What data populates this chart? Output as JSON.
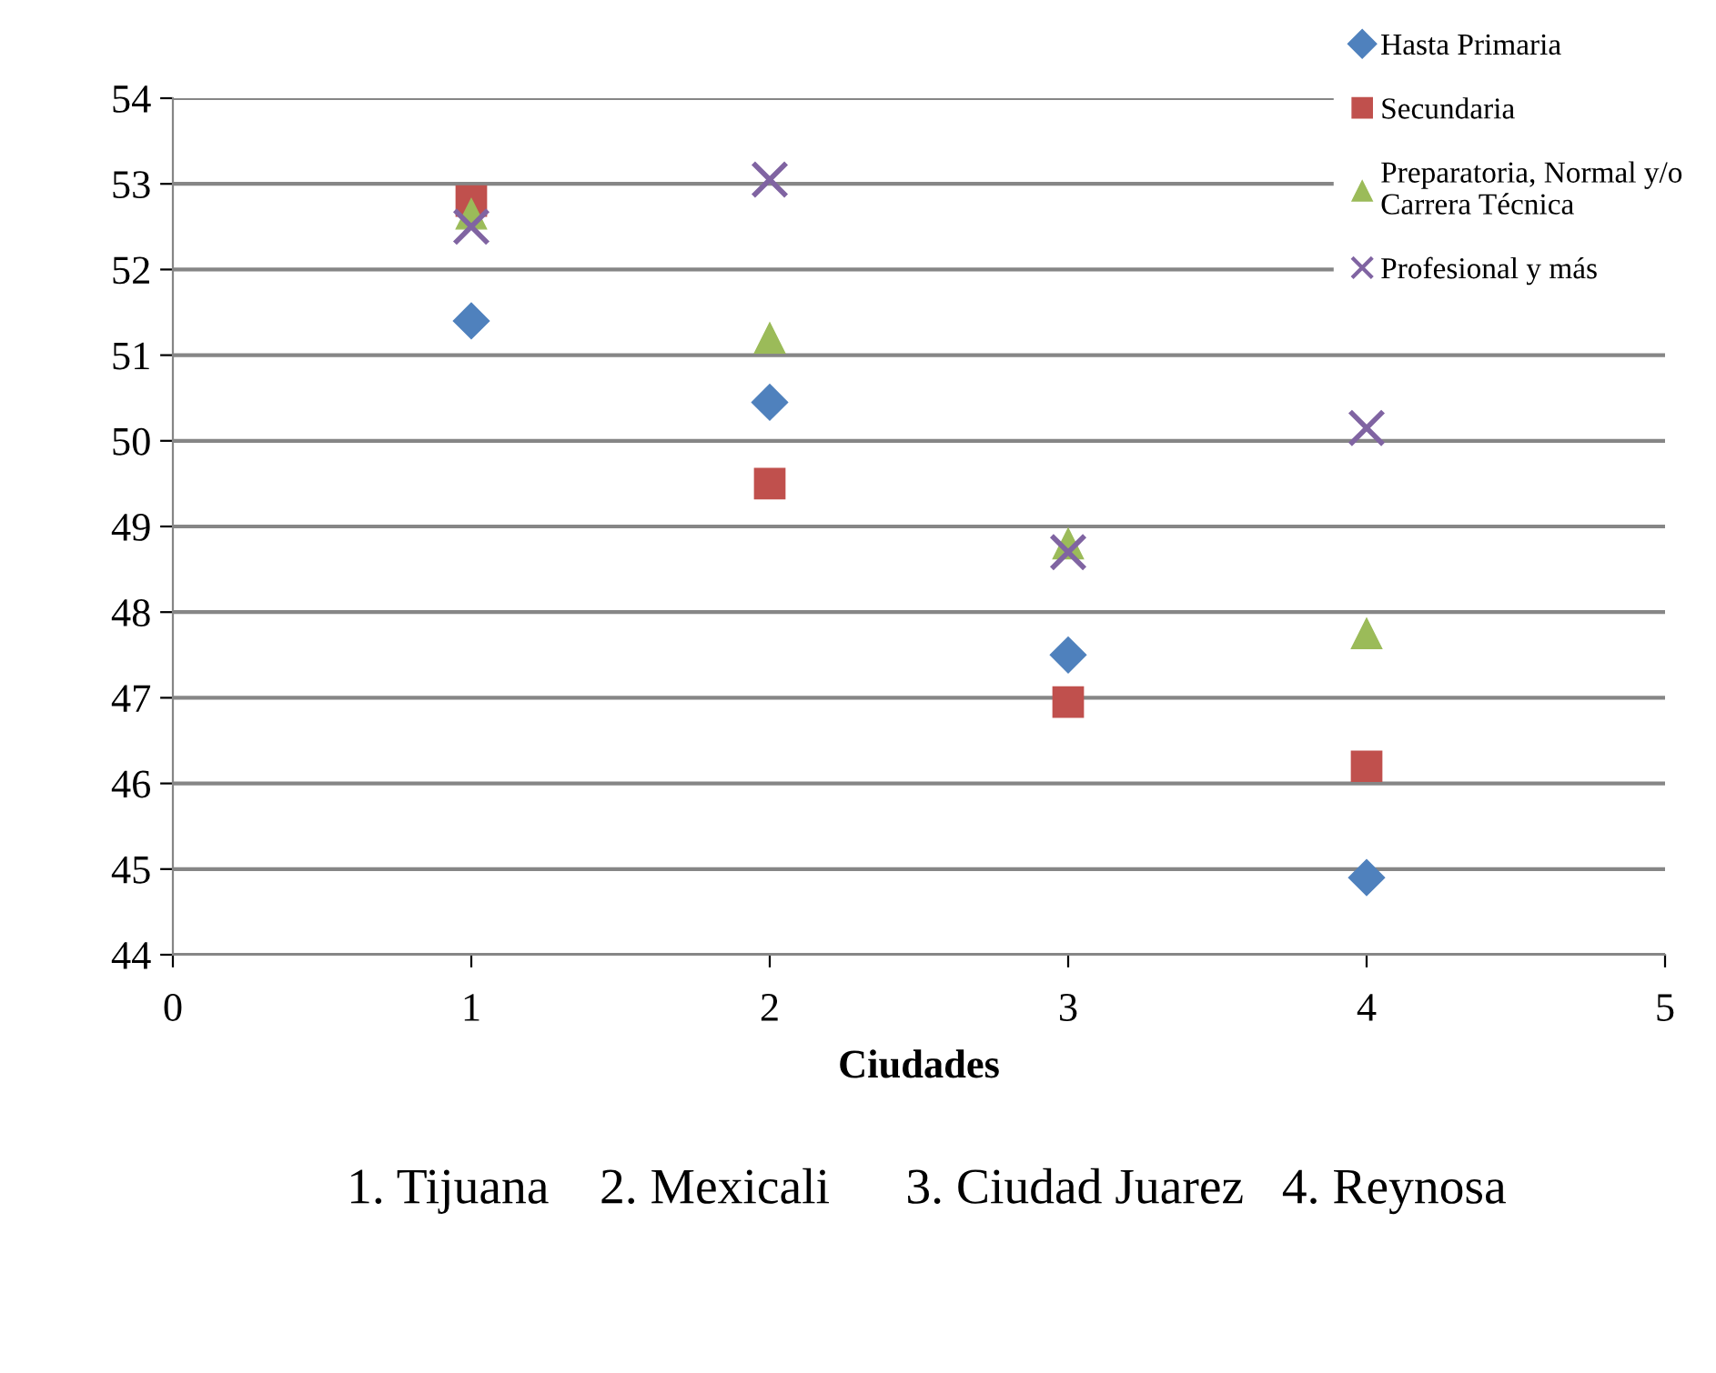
{
  "chart_data": {
    "type": "scatter",
    "xlabel": "Ciudades",
    "x": [
      1,
      2,
      3,
      4
    ],
    "series": [
      {
        "name": "Hasta Primaria",
        "color": "#4f81bd",
        "marker": "diamond",
        "values": [
          51.4,
          50.45,
          47.5,
          44.9
        ]
      },
      {
        "name": "Secundaria",
        "color": "#c0504d",
        "marker": "square",
        "values": [
          52.8,
          49.5,
          46.95,
          46.2
        ]
      },
      {
        "name": "Preparatoria, Normal y/o\nCarrera Técnica",
        "color": "#9bbb59",
        "marker": "triangle",
        "values": [
          52.65,
          51.2,
          48.8,
          47.75
        ]
      },
      {
        "name": "Profesional y más",
        "color": "#8064a2",
        "marker": "cross",
        "values": [
          52.5,
          53.05,
          48.7,
          50.15
        ]
      }
    ],
    "xlim": [
      0,
      5
    ],
    "xticks": [
      0,
      1,
      2,
      3,
      4,
      5
    ],
    "ylim": [
      44,
      54
    ],
    "yticks": [
      44,
      45,
      46,
      47,
      48,
      49,
      50,
      51,
      52,
      53,
      54
    ],
    "grid": "y",
    "legend": "top right",
    "annotations": [
      "1. Tijuana    2. Mexicali      3. Ciudad Juarez   4. Reynosa"
    ]
  }
}
